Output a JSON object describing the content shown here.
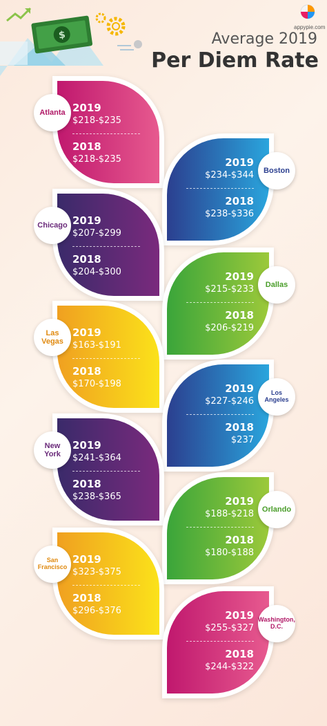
{
  "header": {
    "title_line1": "Average 2019",
    "title_line2": "Per Diem Rate",
    "brand": "appypie.com"
  },
  "colors": {
    "magenta": [
      "#c0186e",
      "#e75a8f"
    ],
    "blue": [
      "#2b3f8f",
      "#2aa5dd"
    ],
    "purple": [
      "#3a2a6a",
      "#7a2a7d"
    ],
    "green": [
      "#3aa53a",
      "#9cc93a"
    ],
    "orange": [
      "#f0a020",
      "#fbe21a"
    ]
  },
  "cities": [
    {
      "name": "Atlanta",
      "y2019_label": "2019",
      "y2019": "$218-$235",
      "y2018_label": "2018",
      "y2018": "$218-$235",
      "side": "left",
      "theme": "magenta",
      "text_color": "#b01866"
    },
    {
      "name": "Boston",
      "y2019_label": "2019",
      "y2019": "$234-$344",
      "y2018_label": "2018",
      "y2018": "$238-$336",
      "side": "right",
      "theme": "blue",
      "text_color": "#2b3f8f"
    },
    {
      "name": "Chicago",
      "y2019_label": "2019",
      "y2019": "$207-$299",
      "y2018_label": "2018",
      "y2018": "$204-$300",
      "side": "left",
      "theme": "purple",
      "text_color": "#6a2a7a"
    },
    {
      "name": "Dallas",
      "y2019_label": "2019",
      "y2019": "$215-$233",
      "y2018_label": "2018",
      "y2018": "$206-$219",
      "side": "right",
      "theme": "green",
      "text_color": "#4a9d2a"
    },
    {
      "name": "Las\nVegas",
      "y2019_label": "2019",
      "y2019": "$163-$191",
      "y2018_label": "2018",
      "y2018": "$170-$198",
      "side": "left",
      "theme": "orange",
      "text_color": "#e08a10"
    },
    {
      "name": "Los\nAngeles",
      "y2019_label": "2019",
      "y2019": "$227-$246",
      "y2018_label": "2018",
      "y2018": "$237",
      "side": "right",
      "theme": "blue",
      "text_color": "#2b3f8f"
    },
    {
      "name": "New\nYork",
      "y2019_label": "2019",
      "y2019": "$241-$364",
      "y2018_label": "2018",
      "y2018": "$238-$365",
      "side": "left",
      "theme": "purple",
      "text_color": "#6a2a7a"
    },
    {
      "name": "Orlando",
      "y2019_label": "2019",
      "y2019": "$188-$218",
      "y2018_label": "2018",
      "y2018": "$180-$188",
      "side": "right",
      "theme": "green",
      "text_color": "#4a9d2a"
    },
    {
      "name": "San\nFrancisco",
      "y2019_label": "2019",
      "y2019": "$323-$375",
      "y2018_label": "2018",
      "y2018": "$296-$376",
      "side": "left",
      "theme": "orange",
      "text_color": "#e08a10"
    },
    {
      "name": "Washington,\nD.C.",
      "y2019_label": "2019",
      "y2019": "$255-$327",
      "y2018_label": "2018",
      "y2018": "$244-$322",
      "side": "right",
      "theme": "magenta",
      "text_color": "#b01866"
    }
  ]
}
